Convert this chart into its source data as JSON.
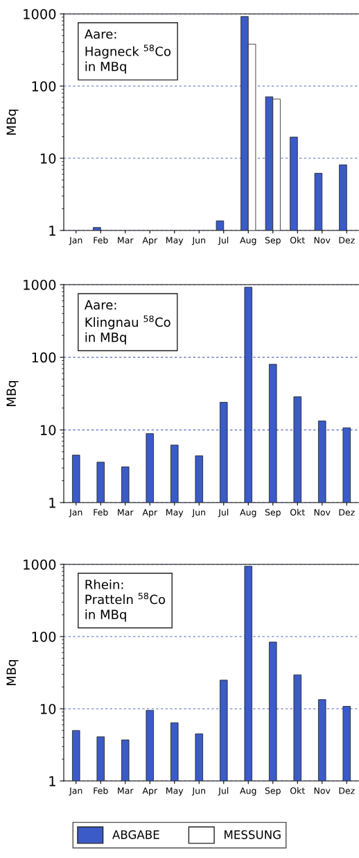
{
  "chart_data": [
    {
      "type": "bar",
      "title": "Aare:\nHagneck $^{58}$Co\nin MBq",
      "ylabel": "MBq",
      "categories": [
        "Jan",
        "Feb",
        "Mar",
        "Apr",
        "May",
        "Jun",
        "Jul",
        "Aug",
        "Sep",
        "Okt",
        "Nov",
        "Dez"
      ],
      "log": true,
      "ylim": [
        1,
        1000
      ],
      "yticks": [
        1,
        10,
        100,
        1000
      ],
      "grid": "y",
      "legend": "bottom",
      "series": [
        {
          "name": "ABGABE",
          "color": "#3a5bc8",
          "values": [
            null,
            1.1,
            null,
            null,
            null,
            null,
            1.36,
            920,
            71,
            19.7,
            6.2,
            8.1
          ]
        },
        {
          "name": "MESSUNG",
          "color": "#ffffff",
          "values": [
            null,
            null,
            null,
            null,
            null,
            null,
            null,
            380,
            66,
            null,
            null,
            null
          ]
        }
      ]
    },
    {
      "type": "bar",
      "title": "Aare:\nKlingnau $^{58}$Co\nin MBq",
      "ylabel": "MBq",
      "categories": [
        "Jan",
        "Feb",
        "Mar",
        "Apr",
        "May",
        "Jun",
        "Jul",
        "Aug",
        "Sep",
        "Okt",
        "Nov",
        "Dez"
      ],
      "log": true,
      "ylim": [
        1,
        1000
      ],
      "yticks": [
        1,
        10,
        100,
        1000
      ],
      "grid": "y",
      "series": [
        {
          "color": "#3a5bc8",
          "values": [
            4.5,
            3.6,
            3.1,
            8.9,
            6.2,
            4.4,
            24,
            920,
            80,
            28.6,
            13.3,
            10.7
          ]
        }
      ]
    },
    {
      "type": "bar",
      "title": "Rhein:\nPratteln $^{58}$Co\nin MBq",
      "ylabel": "MBq",
      "categories": [
        "Jan",
        "Feb",
        "Mar",
        "Apr",
        "May",
        "Jun",
        "Jul",
        "Aug",
        "Sep",
        "Okt",
        "Nov",
        "Dez"
      ],
      "log": true,
      "ylim": [
        1,
        1000
      ],
      "yticks": [
        1,
        10,
        100,
        1000
      ],
      "grid": "y",
      "series": [
        {
          "color": "#3a5bc8",
          "values": [
            5.0,
            4.1,
            3.7,
            9.5,
            6.4,
            4.5,
            24.9,
            942,
            84,
            29.5,
            13.4,
            10.8
          ]
        }
      ]
    }
  ]
}
